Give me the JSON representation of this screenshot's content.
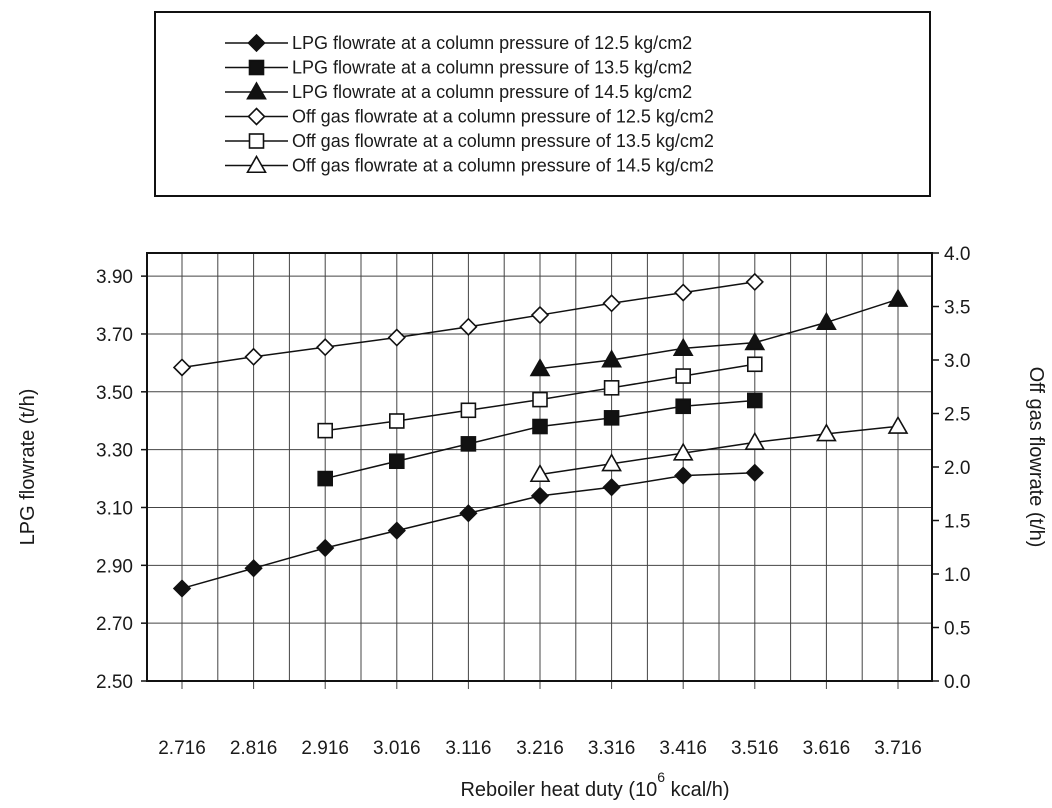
{
  "chart_data": {
    "type": "line",
    "xlabel": "Reboiler heat duty (10",
    "xlabel_sup": "6",
    "xlabel_end": " kcal/h)",
    "ylabel_left": "LPG flowrate (t/h)",
    "ylabel_right": "Off gas flowrate (t/h)",
    "x_ticks": [
      "2.716",
      "2.816",
      "2.916",
      "3.016",
      "3.116",
      "3.216",
      "3.316",
      "3.416",
      "3.516",
      "3.616",
      "3.716"
    ],
    "y_left_ticks": [
      "2.50",
      "2.70",
      "2.90",
      "3.10",
      "3.30",
      "3.50",
      "3.70",
      "3.90"
    ],
    "y_right_ticks": [
      "0.0",
      "0.5",
      "1.0",
      "1.5",
      "2.0",
      "2.5",
      "3.0",
      "3.5",
      "4.0"
    ],
    "ylim_left": [
      2.5,
      3.98
    ],
    "ylim_right": [
      0,
      4.0
    ],
    "grid": true,
    "legend_position": "top",
    "series": [
      {
        "name": "LPG flowrate at a column pressure of 12.5 kg/cm2",
        "axis": "left",
        "marker": "diamond-filled",
        "x": [
          2.716,
          2.816,
          2.916,
          3.016,
          3.116,
          3.216,
          3.316,
          3.416,
          3.516
        ],
        "y": [
          2.82,
          2.89,
          2.96,
          3.02,
          3.08,
          3.14,
          3.17,
          3.21,
          3.22
        ]
      },
      {
        "name": "LPG flowrate at a column pressure of 13.5 kg/cm2",
        "axis": "left",
        "marker": "square-filled",
        "x": [
          2.916,
          3.016,
          3.116,
          3.216,
          3.316,
          3.416,
          3.516
        ],
        "y": [
          3.2,
          3.26,
          3.32,
          3.38,
          3.41,
          3.45,
          3.47
        ]
      },
      {
        "name": "LPG flowrate at a column pressure of 14.5 kg/cm2",
        "axis": "left",
        "marker": "triangle-filled",
        "x": [
          3.216,
          3.316,
          3.416,
          3.516,
          3.616,
          3.716
        ],
        "y": [
          3.58,
          3.61,
          3.65,
          3.67,
          3.74,
          3.82
        ]
      },
      {
        "name": "Off gas flowrate at a column pressure of 12.5 kg/cm2",
        "axis": "right",
        "marker": "diamond-open",
        "x": [
          2.716,
          2.816,
          2.916,
          3.016,
          3.116,
          3.216,
          3.316,
          3.416,
          3.516
        ],
        "y": [
          2.93,
          3.03,
          3.12,
          3.21,
          3.31,
          3.42,
          3.53,
          3.63,
          3.73
        ]
      },
      {
        "name": "Off gas flowrate at a column pressure of 13.5 kg/cm2",
        "axis": "right",
        "marker": "square-open",
        "x": [
          2.916,
          3.016,
          3.116,
          3.216,
          3.316,
          3.416,
          3.516
        ],
        "y": [
          2.34,
          2.43,
          2.53,
          2.63,
          2.74,
          2.85,
          2.96
        ]
      },
      {
        "name": "Off gas flowrate at a column pressure of 14.5 kg/cm2",
        "axis": "right",
        "marker": "triangle-open",
        "x": [
          3.216,
          3.316,
          3.416,
          3.516,
          3.616,
          3.716
        ],
        "y": [
          1.93,
          2.03,
          2.13,
          2.23,
          2.31,
          2.38
        ]
      }
    ]
  }
}
